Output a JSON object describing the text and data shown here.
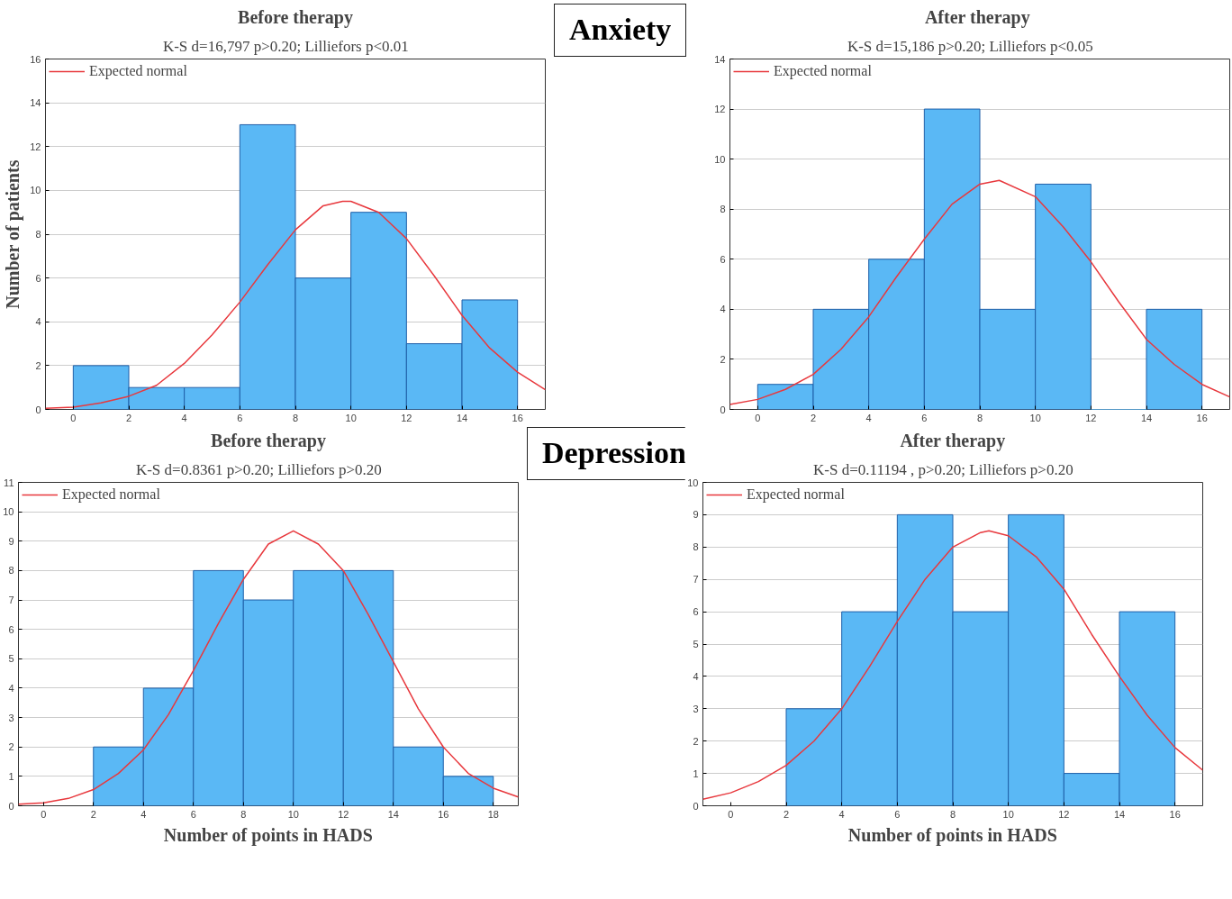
{
  "chart_data": [
    {
      "type": "histogram",
      "title": "Before therapy",
      "subtitle": "K-S  d=16,797  p>0.20;  Lilliefors   p<0.01",
      "ylabel": "Number of patients",
      "annotations": [
        "Anxiety"
      ],
      "bins": [
        0,
        2,
        4,
        6,
        8,
        10,
        12,
        14,
        16
      ],
      "values": [
        2,
        1,
        1,
        13,
        6,
        9,
        3,
        5
      ],
      "color": "#5ab8f5",
      "xlim": [
        -1,
        17
      ],
      "xticks": [
        0,
        2,
        4,
        6,
        8,
        10,
        12,
        14,
        16
      ],
      "ylim": [
        0,
        16
      ],
      "yticks": [
        0,
        2,
        4,
        6,
        8,
        10,
        12,
        14,
        16
      ],
      "grid": "y",
      "legend": "top left",
      "series": [
        {
          "type": "line",
          "name": "Expected normal",
          "color": "#e8383d",
          "x": [
            -1,
            0,
            1,
            2,
            3,
            4,
            5,
            6,
            7,
            8,
            9,
            9.7,
            10,
            11,
            12,
            13,
            14,
            15,
            16,
            17
          ],
          "values": [
            0.05,
            0.1,
            0.3,
            0.6,
            1.1,
            2.1,
            3.4,
            4.9,
            6.6,
            8.2,
            9.3,
            9.5,
            9.5,
            9.0,
            7.8,
            6.1,
            4.3,
            2.8,
            1.7,
            0.9
          ]
        }
      ]
    },
    {
      "type": "histogram",
      "title": "After  therapy",
      "subtitle": "K-S  d=15,186   p>0.20;  Lilliefors  p<0.05",
      "bins": [
        0,
        2,
        4,
        6,
        8,
        10,
        12,
        14,
        16
      ],
      "values": [
        1,
        4,
        6,
        12,
        4,
        9,
        0,
        4
      ],
      "color": "#5ab8f5",
      "xlim": [
        -1,
        17
      ],
      "xticks": [
        0,
        2,
        4,
        6,
        8,
        10,
        12,
        14,
        16
      ],
      "ylim": [
        0,
        14
      ],
      "yticks": [
        0,
        2,
        4,
        6,
        8,
        10,
        12,
        14
      ],
      "grid": "y",
      "legend": "top left",
      "series": [
        {
          "type": "line",
          "name": "Expected normal",
          "color": "#e8383d",
          "x": [
            -1,
            0,
            1,
            2,
            3,
            4,
            5,
            6,
            7,
            8,
            8.7,
            10,
            11,
            12,
            13,
            14,
            15,
            16,
            17
          ],
          "values": [
            0.2,
            0.4,
            0.8,
            1.4,
            2.4,
            3.7,
            5.3,
            6.8,
            8.2,
            9.0,
            9.15,
            8.5,
            7.3,
            5.9,
            4.3,
            2.8,
            1.8,
            1.0,
            0.5
          ]
        }
      ]
    },
    {
      "type": "histogram",
      "title": "Before therapy",
      "subtitle": "K-S  d=0.8361  p>0.20;  Lilliefors   p>0.20",
      "xlabel": "Number of points in HADS",
      "annotations": [
        "Depression"
      ],
      "bins": [
        2,
        4,
        6,
        8,
        10,
        12,
        14,
        16,
        18
      ],
      "values": [
        2,
        4,
        8,
        7,
        8,
        8,
        2,
        1
      ],
      "color": "#5ab8f5",
      "xlim": [
        -1,
        19
      ],
      "xticks": [
        0,
        2,
        4,
        6,
        8,
        10,
        12,
        14,
        16,
        18
      ],
      "ylim": [
        0,
        11
      ],
      "yticks": [
        0,
        1,
        2,
        3,
        4,
        5,
        6,
        7,
        8,
        9,
        10,
        11
      ],
      "grid": "y",
      "legend": "top left",
      "series": [
        {
          "type": "line",
          "name": "Expected normal",
          "color": "#e8383d",
          "x": [
            -1,
            0,
            1,
            2,
            3,
            4,
            5,
            6,
            7,
            8,
            9,
            10,
            11,
            12,
            13,
            14,
            15,
            16,
            17,
            18,
            19
          ],
          "values": [
            0.05,
            0.1,
            0.25,
            0.55,
            1.1,
            1.9,
            3.1,
            4.6,
            6.2,
            7.7,
            8.9,
            9.35,
            8.9,
            8.0,
            6.5,
            4.9,
            3.3,
            2.0,
            1.1,
            0.6,
            0.3
          ]
        }
      ]
    },
    {
      "type": "histogram",
      "title": "After therapy",
      "subtitle": "K-S  d=0.11194 , p>0.20;   Lilliefors   p>0.20",
      "xlabel": "Number of points in HADS",
      "bins": [
        2,
        4,
        6,
        8,
        10,
        12,
        14,
        16
      ],
      "values": [
        3,
        6,
        9,
        6,
        9,
        1,
        6
      ],
      "color": "#5ab8f5",
      "xlim": [
        -1,
        17
      ],
      "xticks": [
        0,
        2,
        4,
        6,
        8,
        10,
        12,
        14,
        16
      ],
      "ylim": [
        0,
        10
      ],
      "yticks": [
        0,
        1,
        2,
        3,
        4,
        5,
        6,
        7,
        8,
        9,
        10
      ],
      "grid": "y",
      "legend": "top left",
      "series": [
        {
          "type": "line",
          "name": "Expected normal",
          "color": "#e8383d",
          "x": [
            -1,
            0,
            1,
            2,
            3,
            4,
            5,
            6,
            7,
            8,
            9,
            9.3,
            10,
            11,
            12,
            13,
            14,
            15,
            16,
            17
          ],
          "values": [
            0.2,
            0.4,
            0.75,
            1.25,
            2.0,
            3.0,
            4.3,
            5.7,
            7.0,
            8.0,
            8.45,
            8.5,
            8.35,
            7.7,
            6.7,
            5.3,
            4.0,
            2.8,
            1.8,
            1.1
          ]
        }
      ]
    }
  ]
}
